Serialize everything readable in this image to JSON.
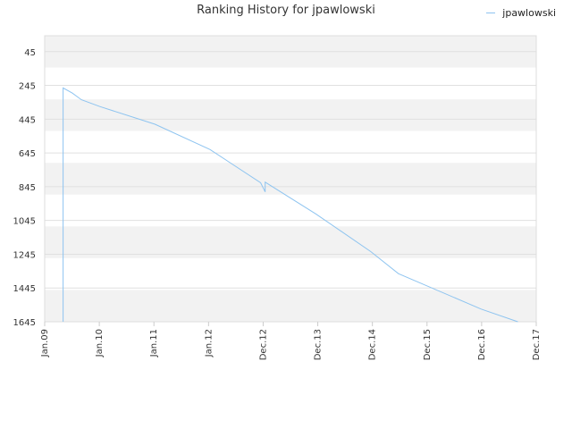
{
  "chart_data": {
    "type": "line",
    "title": "Ranking History for jpawlowski",
    "xlabel": "",
    "ylabel": "",
    "x_ticks": [
      "Jan.09",
      "Jan.10",
      "Jan.11",
      "Jan.12",
      "Dec.12",
      "Dec.13",
      "Dec.14",
      "Dec.15",
      "Dec.16",
      "Dec.17"
    ],
    "xlim": [
      "2009-01",
      "2017-12"
    ],
    "y_ticks": [
      45,
      245,
      445,
      645,
      845,
      1045,
      1245,
      1445,
      1645
    ],
    "ylim": [
      45,
      1645
    ],
    "y_inverted": true,
    "grid": true,
    "legend_position": "top-right",
    "series": [
      {
        "name": "jpawlowski",
        "color": "#8ec4f0",
        "points": [
          {
            "x": "2009-05",
            "y": 1645
          },
          {
            "x": "2009-05",
            "y": 260
          },
          {
            "x": "2009-07",
            "y": 290
          },
          {
            "x": "2009-09",
            "y": 330
          },
          {
            "x": "2010-01",
            "y": 370
          },
          {
            "x": "2011-01",
            "y": 475
          },
          {
            "x": "2012-01",
            "y": 625
          },
          {
            "x": "2012-12",
            "y": 822
          },
          {
            "x": "2013-01",
            "y": 876
          },
          {
            "x": "2013-01",
            "y": 818
          },
          {
            "x": "2013-12",
            "y": 1006
          },
          {
            "x": "2014-12",
            "y": 1230
          },
          {
            "x": "2015-06",
            "y": 1360
          },
          {
            "x": "2016-12",
            "y": 1570
          },
          {
            "x": "2017-08",
            "y": 1645
          }
        ]
      }
    ]
  },
  "legend": {
    "label": "jpawlowski"
  }
}
